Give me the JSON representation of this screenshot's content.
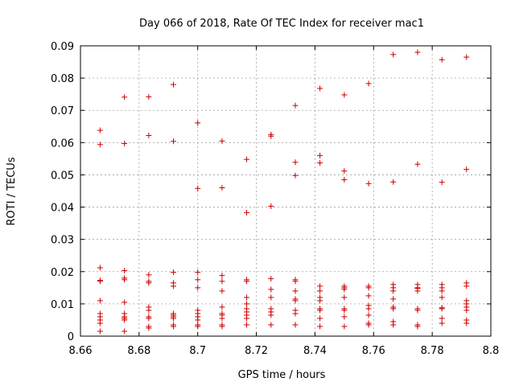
{
  "chart_data": {
    "type": "scatter",
    "title": "Day 066 of 2018, Rate Of TEC Index for receiver mac1",
    "xlabel": "GPS time / hours",
    "ylabel": "ROTI / TECUs",
    "xlim": [
      8.66,
      8.8
    ],
    "ylim": [
      0,
      0.09
    ],
    "xticks": [
      "8.66",
      "8.68",
      "8.7",
      "8.72",
      "8.74",
      "8.76",
      "8.78",
      "8.8"
    ],
    "yticks": [
      "0",
      "0.01",
      "0.02",
      "0.03",
      "0.04",
      "0.05",
      "0.06",
      "0.07",
      "0.08",
      "0.09"
    ],
    "xtick_values": [
      8.66,
      8.68,
      8.7,
      8.72,
      8.74,
      8.76,
      8.78,
      8.8
    ],
    "ytick_values": [
      0,
      0.01,
      0.02,
      0.03,
      0.04,
      0.05,
      0.06,
      0.07,
      0.08,
      0.09
    ],
    "grid": true,
    "marker": "+",
    "marker_color": "#cc0000",
    "series": [
      {
        "name": "mac1",
        "points": [
          [
            8.6667,
            0.0638
          ],
          [
            8.6667,
            0.0594
          ],
          [
            8.6667,
            0.0212
          ],
          [
            8.6667,
            0.0173
          ],
          [
            8.6667,
            0.017
          ],
          [
            8.6667,
            0.011
          ],
          [
            8.6667,
            0.007
          ],
          [
            8.6667,
            0.006
          ],
          [
            8.6667,
            0.005
          ],
          [
            8.6667,
            0.004
          ],
          [
            8.6667,
            0.0015
          ],
          [
            8.675,
            0.0741
          ],
          [
            8.675,
            0.0597
          ],
          [
            8.675,
            0.0203
          ],
          [
            8.675,
            0.018
          ],
          [
            8.675,
            0.0175
          ],
          [
            8.675,
            0.0105
          ],
          [
            8.675,
            0.007
          ],
          [
            8.675,
            0.006
          ],
          [
            8.675,
            0.0055
          ],
          [
            8.675,
            0.005
          ],
          [
            8.675,
            0.0015
          ],
          [
            8.6833,
            0.0742
          ],
          [
            8.6833,
            0.0622
          ],
          [
            8.6833,
            0.019
          ],
          [
            8.6833,
            0.017
          ],
          [
            8.6833,
            0.0165
          ],
          [
            8.6833,
            0.009
          ],
          [
            8.6833,
            0.008
          ],
          [
            8.6833,
            0.006
          ],
          [
            8.6833,
            0.0055
          ],
          [
            8.6833,
            0.003
          ],
          [
            8.6833,
            0.0025
          ],
          [
            8.6917,
            0.078
          ],
          [
            8.6917,
            0.0604
          ],
          [
            8.6917,
            0.0198
          ],
          [
            8.6917,
            0.0165
          ],
          [
            8.6917,
            0.0155
          ],
          [
            8.6917,
            0.007
          ],
          [
            8.6917,
            0.0065
          ],
          [
            8.6917,
            0.006
          ],
          [
            8.6917,
            0.0055
          ],
          [
            8.6917,
            0.0035
          ],
          [
            8.6917,
            0.003
          ],
          [
            8.7,
            0.0661
          ],
          [
            8.7,
            0.0458
          ],
          [
            8.7,
            0.0198
          ],
          [
            8.7,
            0.0175
          ],
          [
            8.7,
            0.015
          ],
          [
            8.7,
            0.008
          ],
          [
            8.7,
            0.007
          ],
          [
            8.7,
            0.006
          ],
          [
            8.7,
            0.005
          ],
          [
            8.7,
            0.0035
          ],
          [
            8.7,
            0.003
          ],
          [
            8.7083,
            0.0605
          ],
          [
            8.7083,
            0.046
          ],
          [
            8.7083,
            0.0188
          ],
          [
            8.7083,
            0.017
          ],
          [
            8.7083,
            0.014
          ],
          [
            8.7083,
            0.009
          ],
          [
            8.7083,
            0.007
          ],
          [
            8.7083,
            0.0065
          ],
          [
            8.7083,
            0.0055
          ],
          [
            8.7083,
            0.0035
          ],
          [
            8.7083,
            0.003
          ],
          [
            8.7167,
            0.0548
          ],
          [
            8.7167,
            0.0383
          ],
          [
            8.7167,
            0.0175
          ],
          [
            8.7167,
            0.017
          ],
          [
            8.7167,
            0.012
          ],
          [
            8.7167,
            0.01
          ],
          [
            8.7167,
            0.0085
          ],
          [
            8.7167,
            0.0075
          ],
          [
            8.7167,
            0.0065
          ],
          [
            8.7167,
            0.0055
          ],
          [
            8.7167,
            0.0035
          ],
          [
            8.725,
            0.0625
          ],
          [
            8.725,
            0.062
          ],
          [
            8.725,
            0.0403
          ],
          [
            8.725,
            0.0178
          ],
          [
            8.725,
            0.0145
          ],
          [
            8.725,
            0.012
          ],
          [
            8.725,
            0.0085
          ],
          [
            8.725,
            0.0075
          ],
          [
            8.725,
            0.0065
          ],
          [
            8.725,
            0.0035
          ],
          [
            8.7333,
            0.0715
          ],
          [
            8.7333,
            0.0539
          ],
          [
            8.7333,
            0.0498
          ],
          [
            8.7333,
            0.0175
          ],
          [
            8.7333,
            0.017
          ],
          [
            8.7333,
            0.014
          ],
          [
            8.7333,
            0.0115
          ],
          [
            8.7333,
            0.011
          ],
          [
            8.7333,
            0.008
          ],
          [
            8.7333,
            0.007
          ],
          [
            8.7333,
            0.0035
          ],
          [
            8.7417,
            0.0768
          ],
          [
            8.7417,
            0.056
          ],
          [
            8.7417,
            0.0537
          ],
          [
            8.7417,
            0.0155
          ],
          [
            8.7417,
            0.014
          ],
          [
            8.7417,
            0.012
          ],
          [
            8.7417,
            0.011
          ],
          [
            8.7417,
            0.0085
          ],
          [
            8.7417,
            0.008
          ],
          [
            8.7417,
            0.0055
          ],
          [
            8.7417,
            0.003
          ],
          [
            8.75,
            0.0748
          ],
          [
            8.75,
            0.0512
          ],
          [
            8.75,
            0.0485
          ],
          [
            8.75,
            0.0155
          ],
          [
            8.75,
            0.015
          ],
          [
            8.75,
            0.0145
          ],
          [
            8.75,
            0.012
          ],
          [
            8.75,
            0.0085
          ],
          [
            8.75,
            0.008
          ],
          [
            8.75,
            0.006
          ],
          [
            8.75,
            0.003
          ],
          [
            8.7583,
            0.0783
          ],
          [
            8.7583,
            0.0473
          ],
          [
            8.7583,
            0.0155
          ],
          [
            8.7583,
            0.015
          ],
          [
            8.7583,
            0.0125
          ],
          [
            8.7583,
            0.0095
          ],
          [
            8.7583,
            0.0085
          ],
          [
            8.7583,
            0.0065
          ],
          [
            8.7583,
            0.004
          ],
          [
            8.7583,
            0.0035
          ],
          [
            8.7667,
            0.0873
          ],
          [
            8.7667,
            0.0478
          ],
          [
            8.7667,
            0.016
          ],
          [
            8.7667,
            0.015
          ],
          [
            8.7667,
            0.014
          ],
          [
            8.7667,
            0.0115
          ],
          [
            8.7667,
            0.009
          ],
          [
            8.7667,
            0.0085
          ],
          [
            8.7667,
            0.0045
          ],
          [
            8.7667,
            0.0035
          ],
          [
            8.775,
            0.088
          ],
          [
            8.775,
            0.0533
          ],
          [
            8.775,
            0.016
          ],
          [
            8.775,
            0.015
          ],
          [
            8.775,
            0.0148
          ],
          [
            8.775,
            0.014
          ],
          [
            8.775,
            0.0085
          ],
          [
            8.775,
            0.008
          ],
          [
            8.775,
            0.0035
          ],
          [
            8.775,
            0.003
          ],
          [
            8.7833,
            0.0857
          ],
          [
            8.7833,
            0.0477
          ],
          [
            8.7833,
            0.016
          ],
          [
            8.7833,
            0.015
          ],
          [
            8.7833,
            0.014
          ],
          [
            8.7833,
            0.012
          ],
          [
            8.7833,
            0.0088
          ],
          [
            8.7833,
            0.0085
          ],
          [
            8.7833,
            0.0055
          ],
          [
            8.7833,
            0.004
          ],
          [
            8.7917,
            0.0865
          ],
          [
            8.7917,
            0.0517
          ],
          [
            8.7917,
            0.0165
          ],
          [
            8.7917,
            0.0155
          ],
          [
            8.7917,
            0.011
          ],
          [
            8.7917,
            0.01
          ],
          [
            8.7917,
            0.009
          ],
          [
            8.7917,
            0.008
          ],
          [
            8.7917,
            0.005
          ],
          [
            8.7917,
            0.004
          ]
        ]
      }
    ]
  }
}
